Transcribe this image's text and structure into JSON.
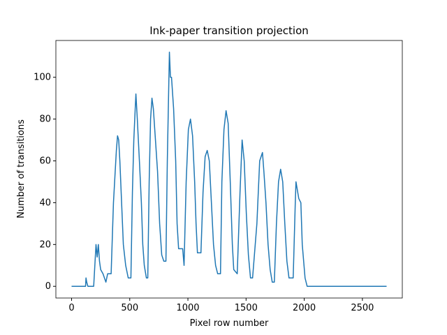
{
  "chart_data": {
    "type": "line",
    "title": "Ink-paper transition projection",
    "xlabel": "Pixel row number",
    "ylabel": "Number of transitions",
    "x": [
      0,
      120,
      124,
      130,
      140,
      190,
      200,
      210,
      220,
      230,
      240,
      250,
      270,
      295,
      310,
      340,
      360,
      385,
      395,
      405,
      415,
      430,
      445,
      465,
      487,
      510,
      523,
      535,
      547,
      553,
      565,
      583,
      600,
      612,
      625,
      643,
      655,
      667,
      679,
      691,
      703,
      715,
      739,
      757,
      775,
      793,
      811,
      823,
      835,
      841,
      850,
      859,
      877,
      895,
      907,
      920,
      955,
      967,
      985,
      1004,
      1022,
      1040,
      1058,
      1070,
      1082,
      1112,
      1130,
      1148,
      1166,
      1184,
      1202,
      1220,
      1238,
      1256,
      1280,
      1292,
      1310,
      1328,
      1346,
      1364,
      1382,
      1394,
      1424,
      1448,
      1466,
      1484,
      1502,
      1520,
      1538,
      1556,
      1593,
      1617,
      1641,
      1653,
      1671,
      1689,
      1707,
      1725,
      1743,
      1761,
      1779,
      1797,
      1815,
      1833,
      1851,
      1869,
      1905,
      1923,
      1929,
      1953,
      1971,
      1983,
      2007,
      2025,
      2708
    ],
    "values": [
      0,
      0,
      4,
      2,
      0,
      0,
      10,
      20,
      14,
      20,
      12,
      8,
      6,
      2,
      6,
      6,
      40,
      65,
      72,
      70,
      60,
      40,
      20,
      10,
      4,
      4,
      45,
      70,
      85,
      92,
      80,
      60,
      40,
      20,
      10,
      4,
      4,
      50,
      80,
      90,
      85,
      75,
      55,
      30,
      15,
      12,
      12,
      60,
      95,
      112,
      100,
      100,
      85,
      60,
      30,
      18,
      18,
      10,
      50,
      75,
      80,
      72,
      50,
      30,
      16,
      16,
      45,
      62,
      65,
      60,
      40,
      20,
      10,
      6,
      6,
      50,
      75,
      84,
      78,
      50,
      20,
      8,
      6,
      45,
      70,
      60,
      35,
      15,
      4,
      4,
      30,
      60,
      64,
      55,
      40,
      20,
      8,
      2,
      2,
      30,
      50,
      56,
      50,
      30,
      12,
      4,
      4,
      40,
      50,
      42,
      40,
      20,
      4,
      0,
      0
    ],
    "color": "#1f77b4",
    "xlim": [
      -135,
      2843
    ],
    "ylim": [
      -5.6,
      117.6
    ],
    "xticks": [
      0,
      500,
      1000,
      1500,
      2000,
      2500
    ],
    "yticks": [
      0,
      20,
      40,
      60,
      80,
      100
    ],
    "grid": false
  }
}
